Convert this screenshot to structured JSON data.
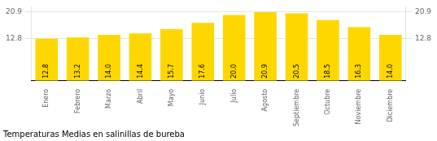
{
  "chart_data": {
    "type": "bar",
    "title": "Temperaturas Medias en salinillas de bureba",
    "categories": [
      "Enero",
      "Febrero",
      "Marzo",
      "Abril",
      "Mayo",
      "Junio",
      "Julio",
      "Agosto",
      "Septiembre",
      "Octubre",
      "Noviembre",
      "Diciembre"
    ],
    "values": [
      12.8,
      13.2,
      14.0,
      14.4,
      15.7,
      17.6,
      20.0,
      20.9,
      20.5,
      18.5,
      16.3,
      14.0
    ],
    "value_labels": [
      "12.8",
      "13.2",
      "14.0",
      "14.4",
      "15.7",
      "17.6",
      "20.0",
      "20.9",
      "20.5",
      "18.5",
      "16.3",
      "14.0"
    ],
    "color": "#FFD700",
    "ylim": [
      0,
      22.5
    ],
    "yticks": [
      12.8,
      20.9
    ],
    "y2lim": [
      0,
      22.5
    ],
    "y2ticks": [
      12.8,
      20.9
    ],
    "grid": true,
    "data_labels": true
  }
}
